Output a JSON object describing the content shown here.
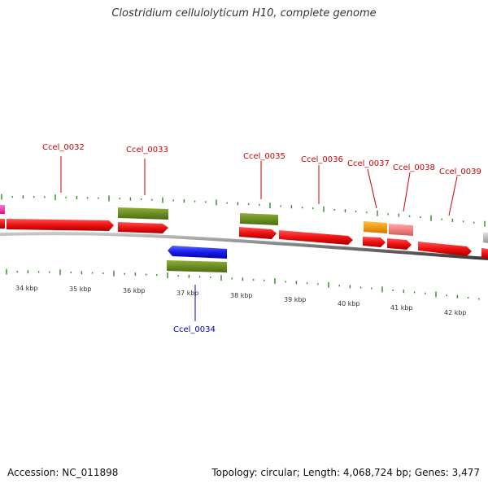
{
  "title": "Clostridium cellulolyticum H10, complete genome",
  "footer": {
    "accession": "Accession: NC_011898",
    "summary": "Topology: circular; Length: 4,068,724 bp; Genes: 3,477"
  },
  "scale": {
    "labels": [
      "34 kbp",
      "35 kbp",
      "36 kbp",
      "37 kbp",
      "38 kbp",
      "39 kbp",
      "40 kbp",
      "41 kbp",
      "42 kbp"
    ]
  },
  "gene_labels": [
    {
      "id": "Ccel_0032",
      "color": "#cc0000"
    },
    {
      "id": "Ccel_0033",
      "color": "#cc0000"
    },
    {
      "id": "Ccel_0034",
      "color": "#0000bb"
    },
    {
      "id": "Ccel_0035",
      "color": "#cc0000"
    },
    {
      "id": "Ccel_0036",
      "color": "#cc0000"
    },
    {
      "id": "Ccel_0037",
      "color": "#cc0000"
    },
    {
      "id": "Ccel_0038",
      "color": "#cc0000"
    },
    {
      "id": "Ccel_0039",
      "color": "#cc0000"
    }
  ],
  "colors": {
    "cds": "#ee1111",
    "olive": "#6b8e23",
    "blue": "#1a1aee",
    "orange": "#f39c12",
    "pink": "#f08080",
    "magenta": "#ff33aa",
    "grey": "#bbbbbb",
    "backbone": "#7a7a7a",
    "ticks": "#2e8b22"
  }
}
